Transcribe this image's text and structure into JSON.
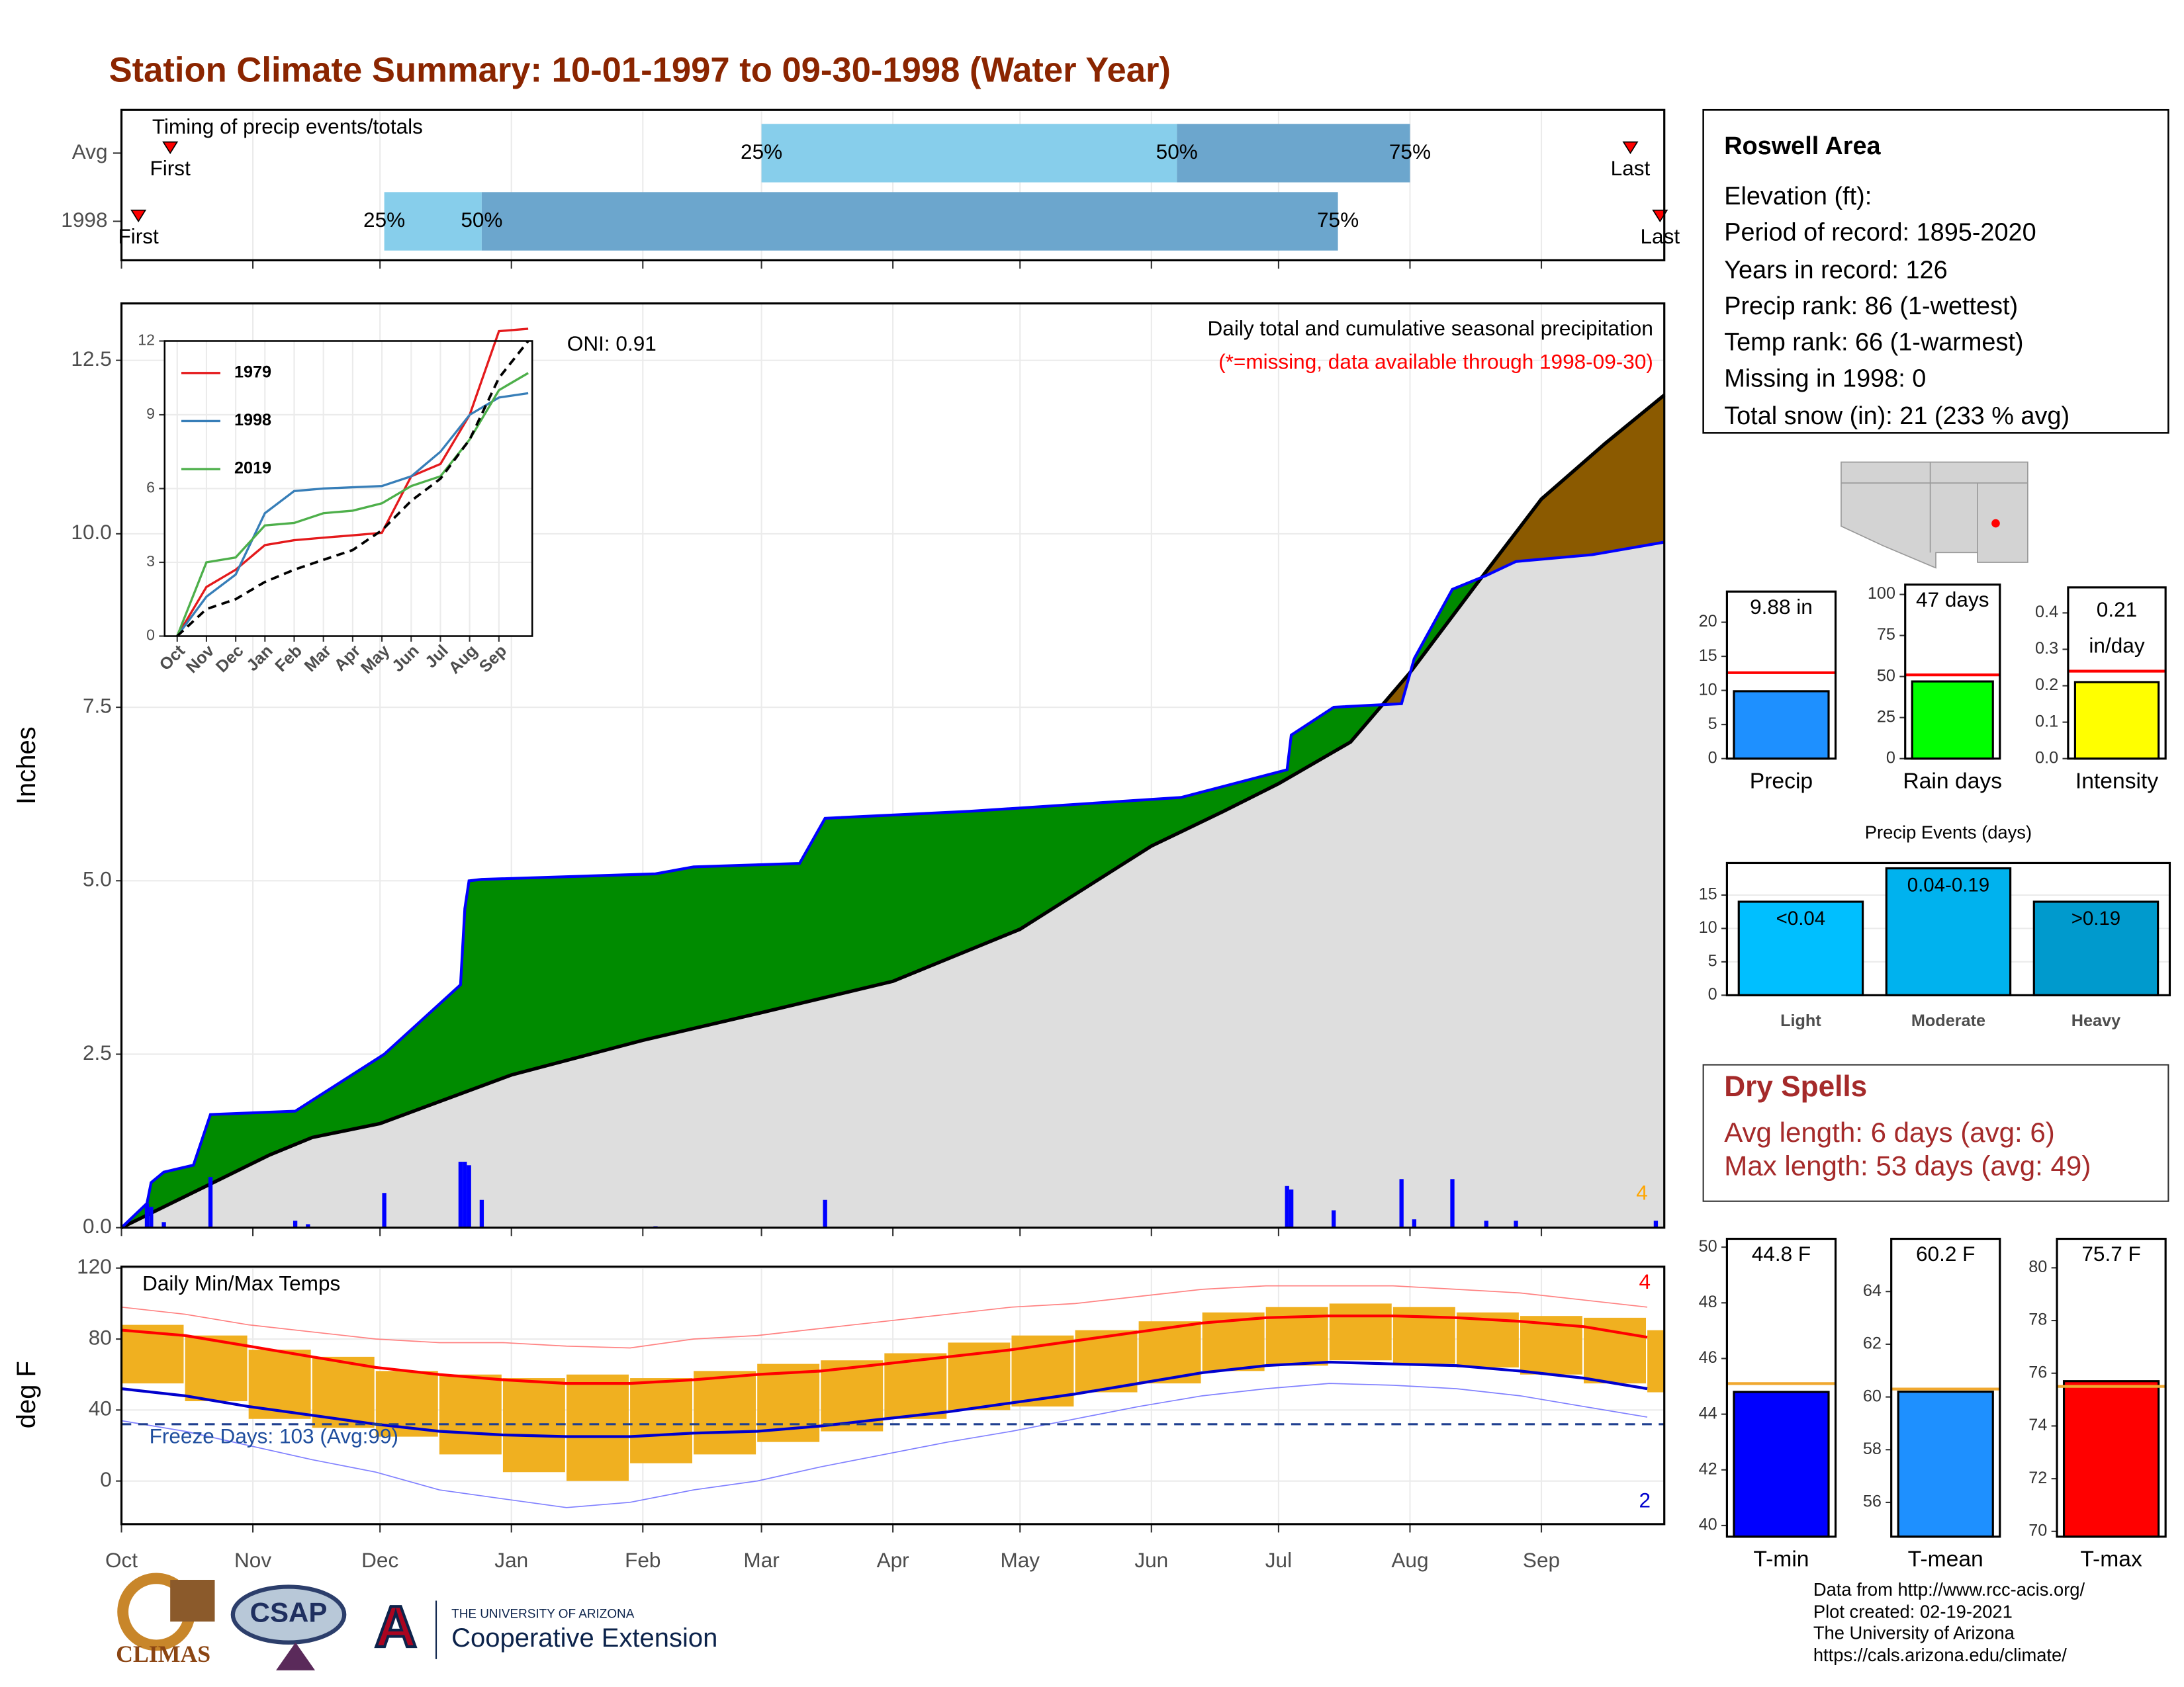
{
  "title": "Station Climate Summary: 10-01-1997 to 09-30-1998 (Water Year)",
  "station": {
    "title": "Roswell Area",
    "lines": [
      "Elevation (ft):",
      "Period of record: 1895-2020",
      "Years in record: 126",
      "Precip rank: 86 (1-wettest)",
      "Temp rank: 66 (1-warmest)",
      "Missing in 1998: 0",
      "Total snow (in): 21 (233 % avg)"
    ]
  },
  "dry_spells": {
    "title": "Dry Spells",
    "lines": [
      "Avg length: 6 days (avg: 6)",
      "Max length: 53 days (avg: 49)"
    ]
  },
  "footer": [
    "Data from http://www.rcc-acis.org/",
    "Plot created: 02-19-2021",
    "The University of Arizona",
    "https://cals.arizona.edu/climate/"
  ],
  "logos": {
    "climas": "CLIMAS",
    "csap": "CSAP",
    "ua_mark": "A",
    "ua": "THE UNIVERSITY OF ARIZONA",
    "coop": "Cooperative Extension"
  },
  "chart_data": [
    {
      "type": "timing",
      "title": "Timing of precip events/totals",
      "categories": [
        "Avg",
        "1998"
      ],
      "colors": [
        "#87ceeb",
        "#6ca6cd"
      ],
      "series": [
        {
          "name": "First",
          "values": [
            11.5,
            4
          ]
        },
        {
          "name": "25%",
          "values": [
            151,
            62
          ]
        },
        {
          "name": "50%",
          "values": [
            249,
            85
          ]
        },
        {
          "name": "75%",
          "values": [
            304,
            287
          ]
        },
        {
          "name": "Last",
          "values": [
            356,
            363
          ]
        }
      ]
    },
    {
      "type": "area",
      "title": "Daily total and cumulative seasonal precipitation",
      "subtitle": "(*=missing, data available through 1998-09-30)",
      "annotation": "ONI: 0.91",
      "count_label": "4",
      "ylabel": "Inches",
      "ylim": [
        0,
        13.32
      ],
      "yticks": [
        {
          "value": 0,
          "label": "0.0"
        },
        {
          "value": 2.5,
          "label": "2.5"
        },
        {
          "value": 5,
          "label": "5.0"
        },
        {
          "value": 7.5,
          "label": "7.5"
        },
        {
          "value": 10,
          "label": "10.0"
        },
        {
          "value": 12.5,
          "label": "12.5"
        }
      ],
      "above_color": "#008b00",
      "below_color": "#8b5a00",
      "fill_color": "#dedede",
      "series": [
        {
          "color": "#0000ff",
          "x": [
            0,
            6,
            7,
            10,
            17,
            21,
            41,
            62,
            80,
            81,
            82,
            85,
            126,
            135,
            160,
            166,
            200,
            250,
            275,
            276,
            286,
            302,
            305,
            314,
            322,
            329,
            347,
            364
          ],
          "values": [
            0,
            0.35,
            0.65,
            0.8,
            0.9,
            1.63,
            1.68,
            2.5,
            3.5,
            4.6,
            5.0,
            5.02,
            5.1,
            5.2,
            5.25,
            5.9,
            6.0,
            6.2,
            6.6,
            7.1,
            7.5,
            7.55,
            8.2,
            9.2,
            9.4,
            9.6,
            9.7,
            9.88
          ]
        },
        {
          "color": "#000000",
          "x": [
            0,
            20,
            35,
            45,
            61,
            92,
            123,
            151,
            182,
            212,
            243,
            260,
            273,
            290,
            304,
            320,
            335,
            350,
            364
          ],
          "values": [
            0,
            0.6,
            1.05,
            1.3,
            1.5,
            2.2,
            2.7,
            3.1,
            3.55,
            4.3,
            5.5,
            6.0,
            6.4,
            7.0,
            8.0,
            9.3,
            10.5,
            11.3,
            12.0
          ]
        }
      ],
      "daily": {
        "color": "#0000ff",
        "x": [
          6,
          7,
          10,
          21,
          41,
          44,
          62,
          80,
          81,
          82,
          85,
          126,
          166,
          275,
          276,
          286,
          302,
          305,
          314,
          322,
          329,
          362
        ],
        "values": [
          0.35,
          0.3,
          0.08,
          0.73,
          0.1,
          0.05,
          0.5,
          0.95,
          0.95,
          0.9,
          0.4,
          0.02,
          0.4,
          0.6,
          0.55,
          0.25,
          0.7,
          0.12,
          0.7,
          0.1,
          0.1,
          0.1
        ]
      }
    },
    {
      "type": "line",
      "x": [
        0,
        1,
        2,
        3,
        4,
        5,
        6,
        7,
        8,
        9,
        10,
        11,
        12
      ],
      "xlim": [
        -0.43,
        12.14
      ],
      "xticks": [
        {
          "value": 0,
          "label": "Oct"
        },
        {
          "value": 1,
          "label": "Nov"
        },
        {
          "value": 2,
          "label": "Dec"
        },
        {
          "value": 3,
          "label": "Jan"
        },
        {
          "value": 4,
          "label": "Feb"
        },
        {
          "value": 5,
          "label": "Mar"
        },
        {
          "value": 6,
          "label": "Apr"
        },
        {
          "value": 7,
          "label": "May"
        },
        {
          "value": 8,
          "label": "Jun"
        },
        {
          "value": 9,
          "label": "Jul"
        },
        {
          "value": 10,
          "label": "Aug"
        },
        {
          "value": 11,
          "label": "Sep"
        }
      ],
      "ylim": [
        0,
        12
      ],
      "yticks": [
        0,
        3,
        6,
        9,
        12
      ],
      "series": [
        {
          "name": "1979",
          "color": "#e41a1c",
          "values": [
            0,
            2.0,
            2.7,
            3.7,
            3.9,
            4.0,
            4.1,
            4.2,
            6.5,
            7.0,
            9.0,
            12.4,
            12.5
          ]
        },
        {
          "name": "1998",
          "color": "#377eb8",
          "values": [
            0,
            1.6,
            2.5,
            5.0,
            5.9,
            6.0,
            6.05,
            6.1,
            6.5,
            7.5,
            9.0,
            9.7,
            9.88
          ]
        },
        {
          "name": "2019",
          "color": "#4daf4a",
          "values": [
            0,
            3.0,
            3.2,
            4.5,
            4.6,
            5.0,
            5.1,
            5.4,
            6.1,
            6.5,
            8.0,
            10.0,
            10.7
          ]
        }
      ],
      "average": {
        "color": "#000000",
        "values": [
          0,
          1.1,
          1.5,
          2.2,
          2.7,
          3.1,
          3.5,
          4.3,
          5.5,
          6.4,
          8.0,
          10.5,
          12.0
        ]
      }
    },
    {
      "type": "range",
      "title": "Daily Min/Max Temps",
      "annotation": "Freeze Days: 103 (Avg:99)",
      "max_count": "4",
      "min_count": "2",
      "ylabel": "deg F",
      "freeze_line": 32,
      "xlim": [
        0,
        364
      ],
      "xticks": [
        {
          "value": 0,
          "label": "Oct"
        },
        {
          "value": 31,
          "label": "Nov"
        },
        {
          "value": 61,
          "label": "Dec"
        },
        {
          "value": 92,
          "label": "Jan"
        },
        {
          "value": 123,
          "label": "Feb"
        },
        {
          "value": 151,
          "label": "Mar"
        },
        {
          "value": 182,
          "label": "Apr"
        },
        {
          "value": 212,
          "label": "May"
        },
        {
          "value": 243,
          "label": "Jun"
        },
        {
          "value": 273,
          "label": "Jul"
        },
        {
          "value": 304,
          "label": "Aug"
        },
        {
          "value": 335,
          "label": "Sep"
        }
      ],
      "ylim": [
        -24.3,
        120.8
      ],
      "yticks": [
        0,
        40,
        80,
        120
      ],
      "x": [
        0,
        15,
        30,
        45,
        60,
        75,
        90,
        105,
        120,
        135,
        150,
        165,
        180,
        195,
        210,
        225,
        240,
        255,
        270,
        285,
        300,
        315,
        330,
        345,
        360
      ],
      "ranges": {
        "color": "#f0b020",
        "low": [
          55,
          45,
          35,
          30,
          25,
          15,
          5,
          0,
          10,
          15,
          22,
          28,
          35,
          40,
          42,
          50,
          55,
          62,
          65,
          68,
          66,
          64,
          60,
          55,
          50
        ],
        "high": [
          88,
          82,
          74,
          70,
          62,
          60,
          58,
          60,
          58,
          62,
          66,
          68,
          72,
          78,
          82,
          85,
          90,
          95,
          98,
          100,
          98,
          95,
          93,
          92,
          85
        ]
      },
      "series": [
        {
          "color": "#ff0000",
          "width": 2,
          "values": [
            85,
            82,
            76,
            70,
            64,
            60,
            57,
            55,
            55,
            57,
            60,
            62,
            66,
            70,
            74,
            79,
            84,
            89,
            92,
            93,
            93,
            92,
            90,
            87,
            81
          ]
        },
        {
          "color": "#0000cd",
          "width": 2,
          "values": [
            52,
            48,
            42,
            37,
            32,
            28,
            26,
            25,
            25,
            27,
            28,
            31,
            35,
            39,
            44,
            49,
            55,
            61,
            65,
            67,
            66,
            65,
            62,
            58,
            52
          ]
        },
        {
          "color": "#ff8080",
          "width": 0.8,
          "values": [
            98,
            94,
            88,
            84,
            80,
            78,
            78,
            76,
            75,
            80,
            82,
            86,
            90,
            94,
            98,
            100,
            104,
            108,
            110,
            110,
            110,
            108,
            106,
            102,
            98
          ]
        },
        {
          "color": "#8080ff",
          "width": 0.8,
          "values": [
            34,
            28,
            20,
            12,
            5,
            -5,
            -10,
            -15,
            -12,
            -5,
            0,
            8,
            15,
            22,
            28,
            35,
            42,
            48,
            52,
            55,
            54,
            52,
            48,
            42,
            36
          ]
        }
      ]
    },
    {
      "type": "bar",
      "categories": [
        "Precip"
      ],
      "values": [
        9.88
      ],
      "value_labels": [
        "9.88 in"
      ],
      "average": 12.6,
      "color": "#1e90ff",
      "average_color": "#ff0000",
      "ylim": [
        0,
        24.5
      ],
      "yticks": [
        0,
        5,
        10,
        15,
        20
      ]
    },
    {
      "type": "bar",
      "categories": [
        "Rain days"
      ],
      "values": [
        47
      ],
      "value_labels": [
        "47 days"
      ],
      "average": 51,
      "color": "#00ff00",
      "average_color": "#ff0000",
      "ylim": [
        0,
        106
      ],
      "yticks": [
        0,
        25,
        50,
        75,
        100
      ]
    },
    {
      "type": "bar",
      "categories": [
        "Intensity"
      ],
      "values": [
        0.21
      ],
      "value_labels": [
        "0.21"
      ],
      "unit": "in/day",
      "average": 0.24,
      "color": "#ffff00",
      "average_color": "#ff0000",
      "ylim": [
        0,
        0.47
      ],
      "yticks": [
        {
          "value": 0,
          "label": "0.0"
        },
        0.1,
        0.2,
        0.3,
        0.4
      ]
    },
    {
      "type": "bar",
      "title": "Precip Events (days)",
      "categories": [
        "Light",
        "Moderate",
        "Heavy"
      ],
      "bin_labels": [
        "<0.04",
        "0.04-0.19",
        ">0.19"
      ],
      "values": [
        14,
        19,
        14
      ],
      "colors": [
        "#00bfff",
        "#00b2ee",
        "#009acd"
      ],
      "ylim": [
        0,
        19.8
      ],
      "yticks": [
        0,
        5,
        10,
        15
      ],
      "grid": true
    },
    {
      "type": "bar",
      "categories": [
        "T-min"
      ],
      "values": [
        44.8
      ],
      "value_labels": [
        "44.8 F"
      ],
      "average": 45.1,
      "color": "#0000ff",
      "average_color": "#f0a830",
      "ylim": [
        39.6,
        50.3
      ],
      "yticks": [
        40,
        42,
        44,
        46,
        48,
        50
      ]
    },
    {
      "type": "bar",
      "categories": [
        "T-mean"
      ],
      "values": [
        60.2
      ],
      "value_labels": [
        "60.2 F"
      ],
      "average": 60.3,
      "color": "#1e90ff",
      "average_color": "#f0a830",
      "ylim": [
        54.7,
        66
      ],
      "yticks": [
        56,
        58,
        60,
        62,
        64
      ]
    },
    {
      "type": "bar",
      "categories": [
        "T-max"
      ],
      "values": [
        75.7
      ],
      "value_labels": [
        "75.7 F"
      ],
      "average": 75.5,
      "color": "#ff0000",
      "average_color": "#f0a830",
      "ylim": [
        69.8,
        81.1
      ],
      "yticks": [
        70,
        72,
        74,
        76,
        78,
        80
      ]
    }
  ]
}
